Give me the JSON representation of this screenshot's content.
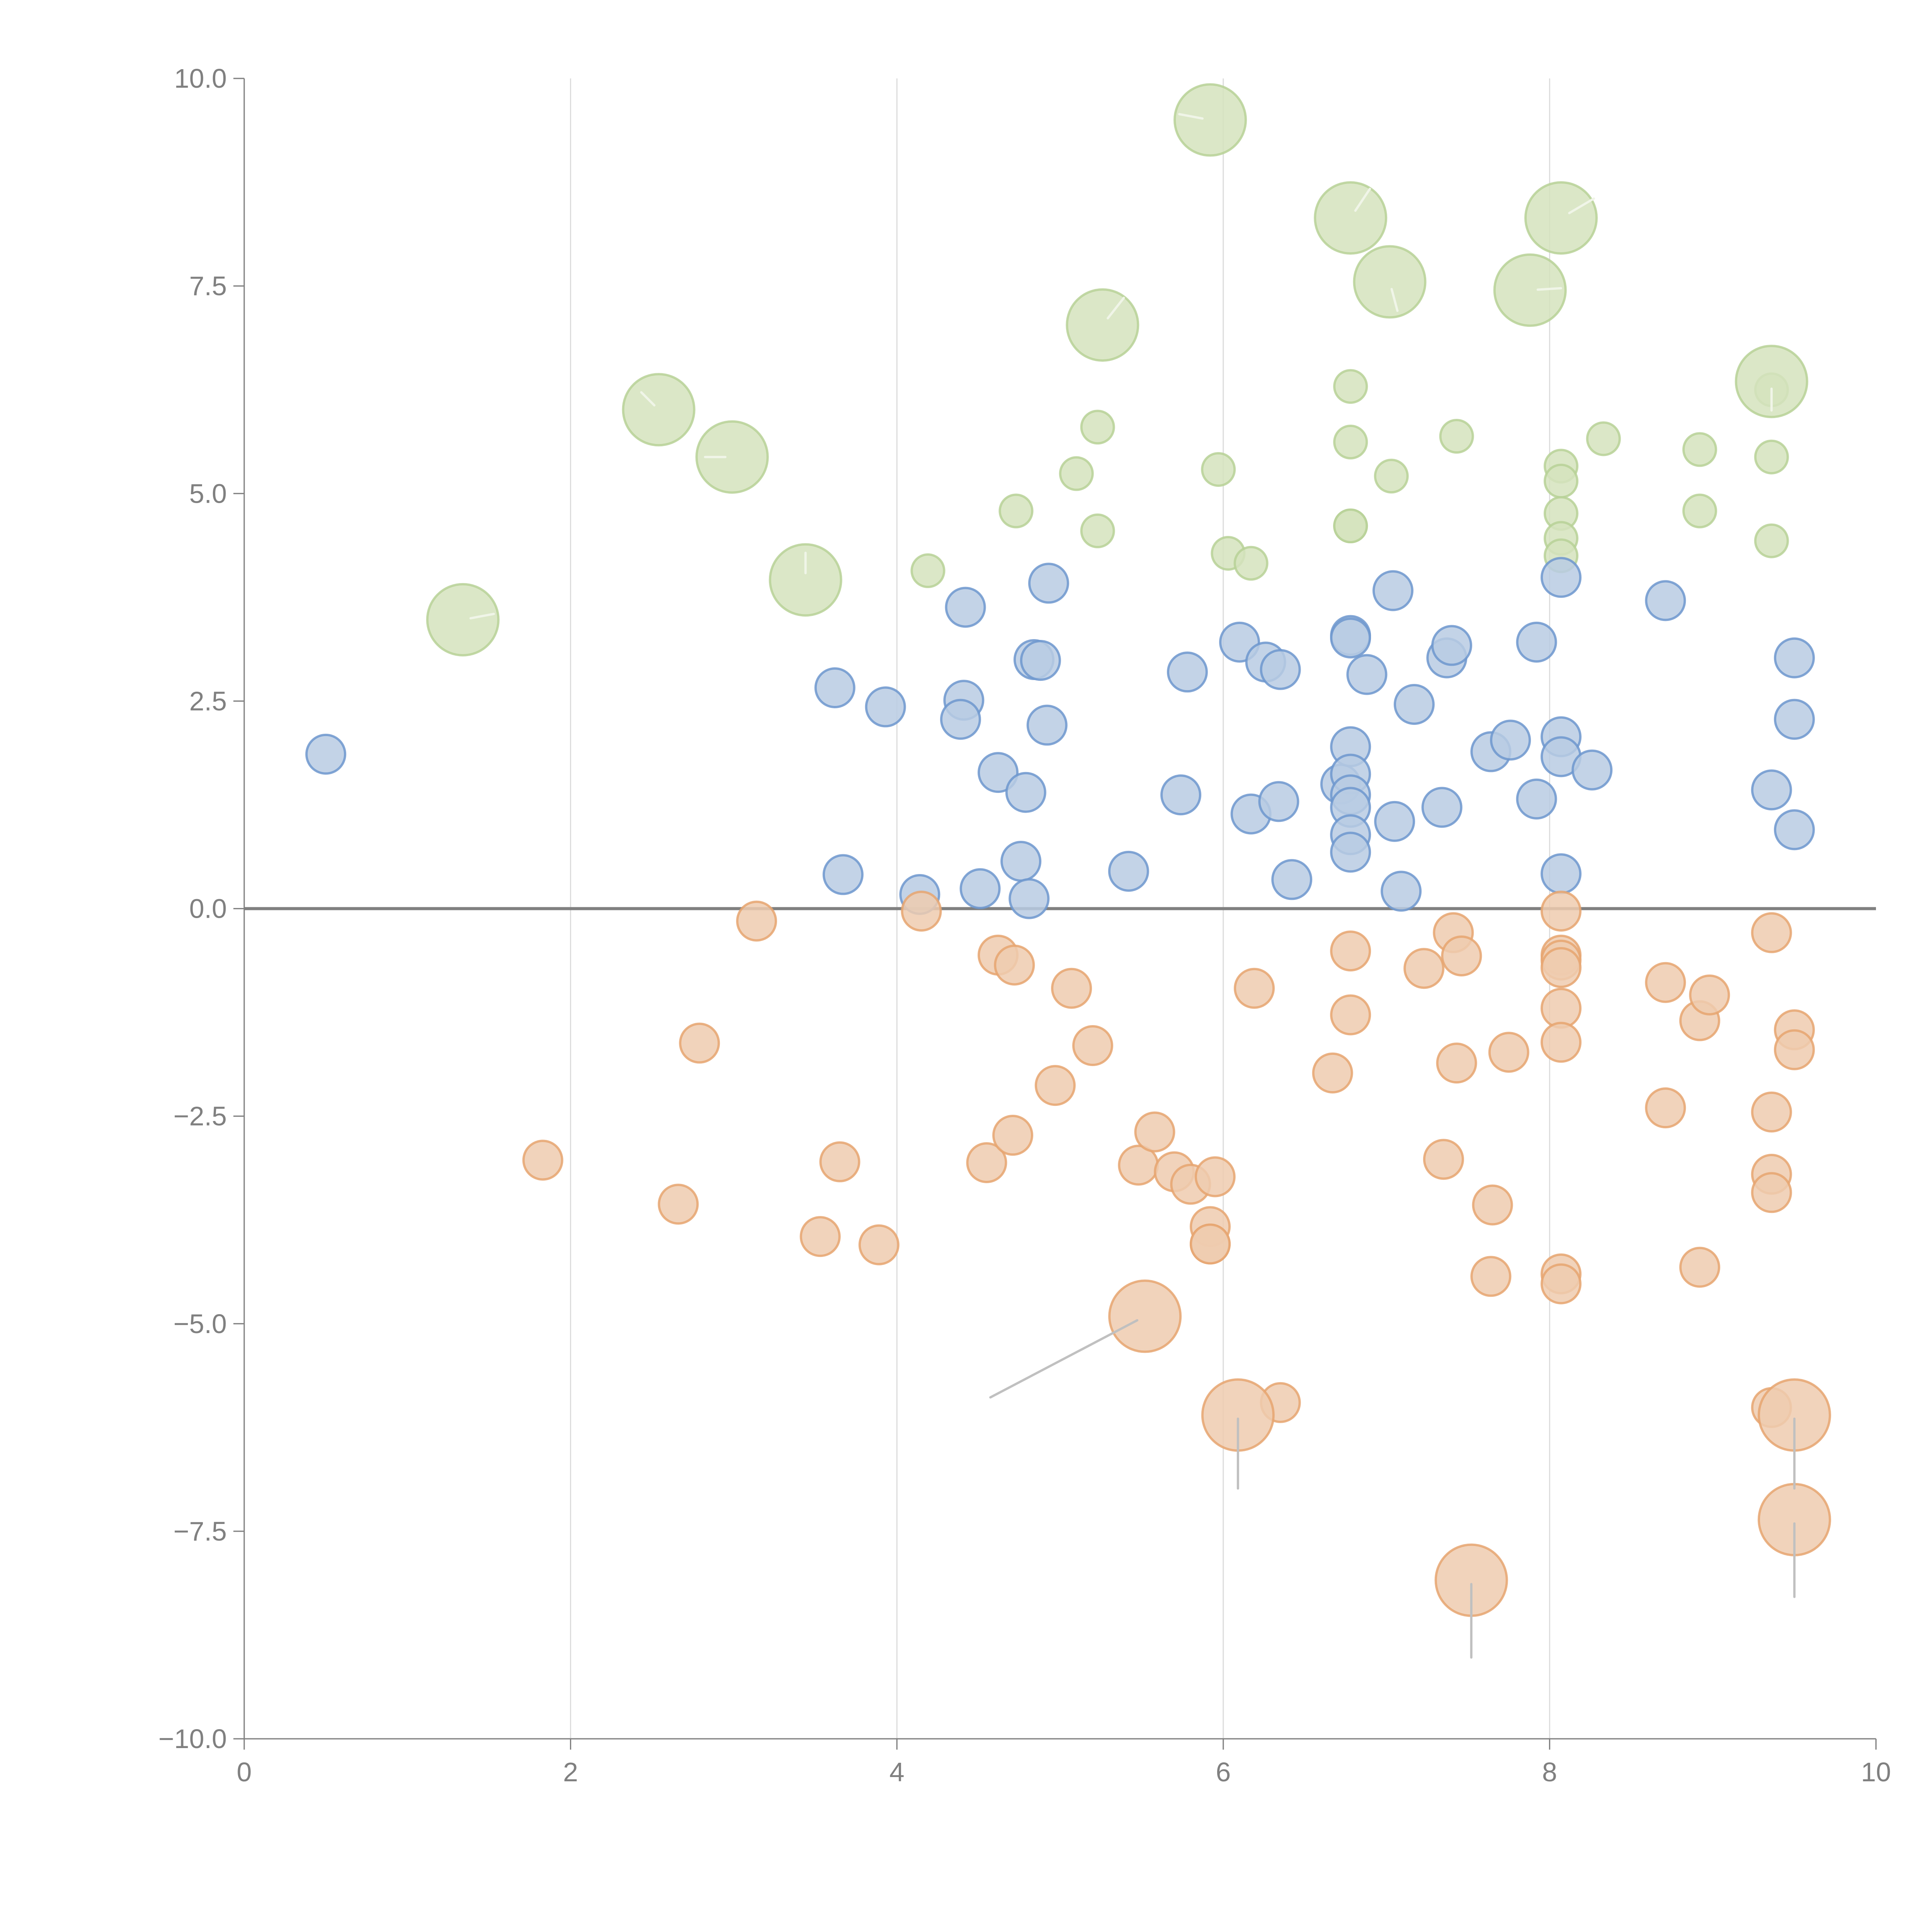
{
  "chart_data": {
    "type": "scatter",
    "subtype": "bubble",
    "title": "",
    "xlabel": "",
    "ylabel": "",
    "xlim": [
      0,
      10
    ],
    "ylim": [
      -10,
      10
    ],
    "x_ticks": [
      0,
      2,
      4,
      6,
      8,
      10
    ],
    "x_tick_labels": [
      "0",
      "2",
      "4",
      "6",
      "8",
      "10"
    ],
    "y_ticks": [
      10,
      7.5,
      5,
      2.5,
      0,
      -2.5,
      -5,
      -7.5,
      -10
    ],
    "y_tick_labels": [
      "10.0",
      "7.5",
      "5.0",
      "2.5",
      "0.0",
      "−2.5",
      "−5.0",
      "−7.5",
      "−10.0"
    ],
    "grid": {
      "x": true,
      "y": false
    },
    "reference_line_y": 0,
    "legend": "none",
    "colors": {
      "green_fill": "#d5e3bd",
      "green_stroke": "#b7d196",
      "blue_fill": "#b8cbe3",
      "blue_stroke": "#6d97ce",
      "orange_fill": "#efcbaf",
      "orange_stroke": "#e6a470",
      "leader_light": "#f0f5e8",
      "leader_gray": "#c0c0c0"
    },
    "series": [
      {
        "name": "green-small",
        "color_key": "green",
        "size": "small",
        "points": [
          [
            4.19,
            4.07
          ],
          [
            4.73,
            4.79
          ],
          [
            5.1,
            5.24
          ],
          [
            5.23,
            5.8
          ],
          [
            5.23,
            4.55
          ],
          [
            5.97,
            5.29
          ],
          [
            6.03,
            4.28
          ],
          [
            6.17,
            4.16
          ],
          [
            6.78,
            6.29
          ],
          [
            6.78,
            5.62
          ],
          [
            6.78,
            4.61
          ],
          [
            6.78,
            4.61
          ],
          [
            7.03,
            5.21
          ],
          [
            7.43,
            5.69
          ],
          [
            8.07,
            5.33
          ],
          [
            8.07,
            5.15
          ],
          [
            8.07,
            4.76
          ],
          [
            8.07,
            4.46
          ],
          [
            8.07,
            4.25
          ],
          [
            8.33,
            5.66
          ],
          [
            8.92,
            5.53
          ],
          [
            8.92,
            4.79
          ],
          [
            9.36,
            6.25
          ],
          [
            9.36,
            5.44
          ],
          [
            9.36,
            4.43
          ]
        ]
      },
      {
        "name": "green-large",
        "color_key": "green",
        "size": "large",
        "points": [
          [
            1.34,
            3.48
          ],
          [
            2.54,
            6.01
          ],
          [
            2.99,
            5.44
          ],
          [
            3.44,
            3.96
          ],
          [
            5.26,
            7.03
          ],
          [
            5.92,
            9.5
          ],
          [
            6.78,
            8.32
          ],
          [
            7.02,
            7.55
          ],
          [
            7.88,
            7.45
          ],
          [
            8.07,
            8.32
          ],
          [
            9.36,
            6.35
          ]
        ]
      },
      {
        "name": "blue",
        "color_key": "blue",
        "size": "medium",
        "points": [
          [
            0.5,
            1.86
          ],
          [
            3.62,
            2.66
          ],
          [
            3.67,
            0.41
          ],
          [
            3.93,
            2.43
          ],
          [
            4.14,
            0.17
          ],
          [
            4.42,
            3.63
          ],
          [
            4.41,
            2.51
          ],
          [
            4.39,
            2.28
          ],
          [
            4.51,
            0.24
          ],
          [
            4.62,
            1.64
          ],
          [
            4.76,
            0.57
          ],
          [
            4.79,
            1.4
          ],
          [
            4.81,
            0.12
          ],
          [
            4.84,
            3.0
          ],
          [
            4.88,
            2.99
          ],
          [
            4.93,
            3.92
          ],
          [
            4.92,
            2.21
          ],
          [
            5.42,
            0.45
          ],
          [
            5.74,
            1.37
          ],
          [
            5.78,
            2.85
          ],
          [
            6.1,
            3.21
          ],
          [
            6.17,
            1.14
          ],
          [
            6.26,
            2.97
          ],
          [
            6.34,
            1.29
          ],
          [
            6.35,
            2.88
          ],
          [
            6.42,
            0.35
          ],
          [
            6.72,
            1.5
          ],
          [
            6.78,
            3.29
          ],
          [
            6.78,
            3.26
          ],
          [
            6.78,
            1.95
          ],
          [
            6.78,
            1.62
          ],
          [
            6.78,
            1.37
          ],
          [
            6.78,
            1.22
          ],
          [
            6.78,
            0.89
          ],
          [
            6.78,
            0.68
          ],
          [
            6.88,
            2.82
          ],
          [
            7.04,
            3.83
          ],
          [
            7.05,
            1.05
          ],
          [
            7.09,
            0.21
          ],
          [
            7.17,
            2.46
          ],
          [
            7.34,
            1.22
          ],
          [
            7.37,
            3.02
          ],
          [
            7.4,
            3.17
          ],
          [
            7.64,
            1.89
          ],
          [
            7.76,
            2.03
          ],
          [
            7.92,
            3.21
          ],
          [
            7.92,
            1.32
          ],
          [
            8.07,
            3.99
          ],
          [
            8.07,
            2.07
          ],
          [
            8.07,
            1.83
          ],
          [
            8.07,
            0.42
          ],
          [
            8.26,
            1.67
          ],
          [
            8.71,
            3.71
          ],
          [
            9.36,
            1.43
          ],
          [
            9.5,
            3.02
          ],
          [
            9.5,
            2.28
          ],
          [
            9.5,
            0.95
          ]
        ]
      },
      {
        "name": "orange-small",
        "color_key": "orange",
        "size": "medium",
        "points": [
          [
            1.83,
            -3.03
          ],
          [
            2.66,
            -3.56
          ],
          [
            2.79,
            -1.62
          ],
          [
            3.14,
            -0.15
          ],
          [
            3.53,
            -3.95
          ],
          [
            3.65,
            -3.05
          ],
          [
            3.89,
            -4.05
          ],
          [
            4.15,
            -0.03
          ],
          [
            4.55,
            -3.06
          ],
          [
            4.62,
            -0.56
          ],
          [
            4.71,
            -2.73
          ],
          [
            4.72,
            -0.68
          ],
          [
            4.97,
            -2.13
          ],
          [
            5.07,
            -0.96
          ],
          [
            5.2,
            -1.65
          ],
          [
            5.48,
            -3.09
          ],
          [
            5.58,
            -2.69
          ],
          [
            5.7,
            -3.17
          ],
          [
            5.8,
            -3.32
          ],
          [
            5.92,
            -3.83
          ],
          [
            5.92,
            -4.04
          ],
          [
            5.92,
            -4.04
          ],
          [
            5.95,
            -3.23
          ],
          [
            6.19,
            -0.96
          ],
          [
            6.35,
            -5.95
          ],
          [
            6.67,
            -1.98
          ],
          [
            6.78,
            -0.51
          ],
          [
            6.78,
            -1.28
          ],
          [
            7.23,
            -0.72
          ],
          [
            7.35,
            -3.02
          ],
          [
            7.41,
            -0.29
          ],
          [
            7.43,
            -1.86
          ],
          [
            7.46,
            -0.57
          ],
          [
            7.64,
            -4.43
          ],
          [
            7.65,
            -3.57
          ],
          [
            7.75,
            -1.73
          ],
          [
            8.07,
            -0.03
          ],
          [
            8.07,
            -0.56
          ],
          [
            8.07,
            -0.62
          ],
          [
            8.07,
            -0.71
          ],
          [
            8.07,
            -1.2
          ],
          [
            8.07,
            -1.61
          ],
          [
            8.07,
            -4.4
          ],
          [
            8.07,
            -4.52
          ],
          [
            8.71,
            -0.89
          ],
          [
            8.71,
            -2.4
          ],
          [
            8.92,
            -1.35
          ],
          [
            8.98,
            -1.04
          ],
          [
            8.92,
            -4.32
          ],
          [
            9.36,
            -0.29
          ],
          [
            9.36,
            -2.45
          ],
          [
            9.36,
            -3.2
          ],
          [
            9.36,
            -3.42
          ],
          [
            9.36,
            -6.01
          ],
          [
            9.5,
            -1.46
          ],
          [
            9.5,
            -1.7
          ]
        ]
      },
      {
        "name": "orange-large",
        "color_key": "orange",
        "size": "large",
        "points": [
          [
            5.52,
            -4.91
          ],
          [
            6.09,
            -6.1
          ],
          [
            7.52,
            -8.09
          ],
          [
            9.5,
            -6.1
          ],
          [
            9.5,
            -7.36
          ]
        ]
      }
    ],
    "annotations_note": "Large bubbles carry leader lines to labels rendered in white (not legible against the white background)."
  }
}
